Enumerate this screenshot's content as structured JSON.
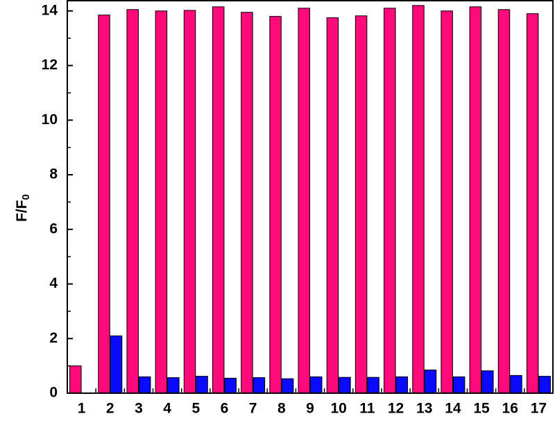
{
  "chart_data": {
    "type": "bar",
    "ylabel": "F/F",
    "ylabel_subscript": "0",
    "categories": [
      "1",
      "2",
      "3",
      "4",
      "5",
      "6",
      "7",
      "8",
      "9",
      "10",
      "11",
      "12",
      "13",
      "14",
      "15",
      "16",
      "17"
    ],
    "series": [
      {
        "color": "#ff0a7a",
        "values": [
          1.0,
          13.85,
          14.05,
          14.0,
          14.02,
          14.15,
          13.95,
          13.8,
          14.1,
          13.75,
          13.82,
          14.1,
          14.2,
          14.0,
          14.15,
          14.05,
          13.9
        ]
      },
      {
        "color": "#0a0aff",
        "values": [
          0,
          2.1,
          0.6,
          0.57,
          0.62,
          0.55,
          0.57,
          0.53,
          0.6,
          0.58,
          0.58,
          0.6,
          0.85,
          0.6,
          0.82,
          0.65,
          0.62
        ]
      }
    ],
    "ylim": [
      0,
      14.4
    ],
    "yticks": [
      0,
      2,
      4,
      6,
      8,
      10,
      12,
      14
    ],
    "yminor_ticks": [
      1,
      3,
      5,
      7,
      9,
      11,
      13
    ]
  }
}
